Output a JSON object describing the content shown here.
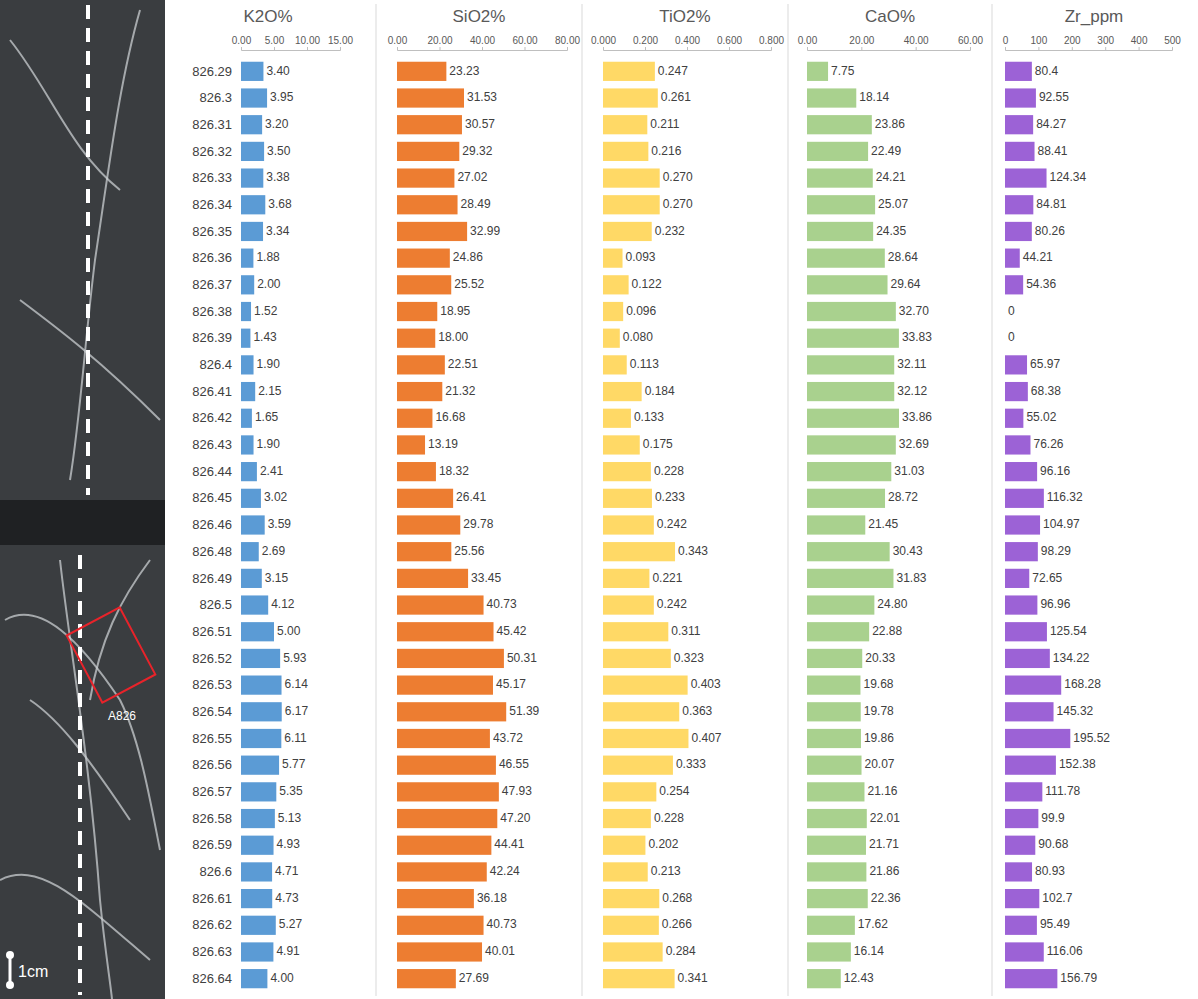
{
  "photo": {
    "label": "A826",
    "scale_bar": "1cm"
  },
  "chart_data": [
    {
      "type": "bar",
      "orientation": "horizontal",
      "title": "K2O%",
      "color": "#5b9bd5",
      "data_labels": true,
      "categories": [
        "826.29",
        "826.3",
        "826.31",
        "826.32",
        "826.33",
        "826.34",
        "826.35",
        "826.36",
        "826.37",
        "826.38",
        "826.39",
        "826.4",
        "826.41",
        "826.42",
        "826.43",
        "826.44",
        "826.45",
        "826.46",
        "826.48",
        "826.49",
        "826.5",
        "826.51",
        "826.52",
        "826.53",
        "826.54",
        "826.55",
        "826.56",
        "826.57",
        "826.58",
        "826.59",
        "826.6",
        "826.61",
        "826.62",
        "826.63",
        "826.64"
      ],
      "values": [
        3.4,
        3.95,
        3.2,
        3.5,
        3.38,
        3.68,
        3.34,
        1.88,
        2.0,
        1.52,
        1.43,
        1.9,
        2.15,
        1.65,
        1.9,
        2.41,
        3.02,
        3.59,
        2.69,
        3.15,
        4.12,
        5.0,
        5.93,
        6.14,
        6.17,
        6.11,
        5.77,
        5.35,
        5.13,
        4.93,
        4.71,
        4.73,
        5.27,
        4.91,
        4.0
      ],
      "value_labels": [
        "3.40",
        "3.95",
        "3.20",
        "3.50",
        "3.38",
        "3.68",
        "3.34",
        "1.88",
        "2.00",
        "1.52",
        "1.43",
        "1.90",
        "2.15",
        "1.65",
        "1.90",
        "2.41",
        "3.02",
        "3.59",
        "2.69",
        "3.15",
        "4.12",
        "5.00",
        "5.93",
        "6.14",
        "6.17",
        "6.11",
        "5.77",
        "5.35",
        "5.13",
        "4.93",
        "4.71",
        "4.73",
        "5.27",
        "4.91",
        "4.00"
      ],
      "xlim": [
        0,
        15
      ],
      "xticks": [
        {
          "value": 0,
          "label": "0.00"
        },
        {
          "value": 5,
          "label": "5.00"
        },
        {
          "value": 10,
          "label": "10.00"
        },
        {
          "value": 15,
          "label": "15.00"
        }
      ]
    },
    {
      "type": "bar",
      "orientation": "horizontal",
      "title": "SiO2%",
      "color": "#ed7d31",
      "data_labels": true,
      "tick_labels": "x",
      "categories": [
        "826.29",
        "826.3",
        "826.31",
        "826.32",
        "826.33",
        "826.34",
        "826.35",
        "826.36",
        "826.37",
        "826.38",
        "826.39",
        "826.4",
        "826.41",
        "826.42",
        "826.43",
        "826.44",
        "826.45",
        "826.46",
        "826.48",
        "826.49",
        "826.5",
        "826.51",
        "826.52",
        "826.53",
        "826.54",
        "826.55",
        "826.56",
        "826.57",
        "826.58",
        "826.59",
        "826.6",
        "826.61",
        "826.62",
        "826.63",
        "826.64"
      ],
      "values": [
        23.23,
        31.53,
        30.57,
        29.32,
        27.02,
        28.49,
        32.99,
        24.86,
        25.52,
        18.95,
        18.0,
        22.51,
        21.32,
        16.68,
        13.19,
        18.32,
        26.41,
        29.78,
        25.56,
        33.45,
        40.73,
        45.42,
        50.31,
        45.17,
        51.39,
        43.72,
        46.55,
        47.93,
        47.2,
        44.41,
        42.24,
        36.18,
        40.73,
        40.01,
        27.69
      ],
      "value_labels": [
        "23.23",
        "31.53",
        "30.57",
        "29.32",
        "27.02",
        "28.49",
        "32.99",
        "24.86",
        "25.52",
        "18.95",
        "18.00",
        "22.51",
        "21.32",
        "16.68",
        "13.19",
        "18.32",
        "26.41",
        "29.78",
        "25.56",
        "33.45",
        "40.73",
        "45.42",
        "50.31",
        "45.17",
        "51.39",
        "43.72",
        "46.55",
        "47.93",
        "47.20",
        "44.41",
        "42.24",
        "36.18",
        "40.73",
        "40.01",
        "27.69"
      ],
      "xlim": [
        0,
        80
      ],
      "xticks": [
        {
          "value": 0,
          "label": "0.00"
        },
        {
          "value": 20,
          "label": "20.00"
        },
        {
          "value": 40,
          "label": "40.00"
        },
        {
          "value": 60,
          "label": "60.00"
        },
        {
          "value": 80,
          "label": "80.00"
        }
      ]
    },
    {
      "type": "bar",
      "orientation": "horizontal",
      "title": "TiO2%",
      "color": "#ffd966",
      "data_labels": true,
      "tick_labels": "x",
      "categories": [
        "826.29",
        "826.3",
        "826.31",
        "826.32",
        "826.33",
        "826.34",
        "826.35",
        "826.36",
        "826.37",
        "826.38",
        "826.39",
        "826.4",
        "826.41",
        "826.42",
        "826.43",
        "826.44",
        "826.45",
        "826.46",
        "826.48",
        "826.49",
        "826.5",
        "826.51",
        "826.52",
        "826.53",
        "826.54",
        "826.55",
        "826.56",
        "826.57",
        "826.58",
        "826.59",
        "826.6",
        "826.61",
        "826.62",
        "826.63",
        "826.64"
      ],
      "values": [
        0.247,
        0.261,
        0.211,
        0.216,
        0.27,
        0.27,
        0.232,
        0.093,
        0.122,
        0.096,
        0.08,
        0.113,
        0.184,
        0.133,
        0.175,
        0.228,
        0.233,
        0.242,
        0.343,
        0.221,
        0.242,
        0.311,
        0.323,
        0.403,
        0.363,
        0.407,
        0.333,
        0.254,
        0.228,
        0.202,
        0.213,
        0.268,
        0.266,
        0.284,
        0.341
      ],
      "value_labels": [
        "0.247",
        "0.261",
        "0.211",
        "0.216",
        "0.270",
        "0.270",
        "0.232",
        "0.093",
        "0.122",
        "0.096",
        "0.080",
        "0.113",
        "0.184",
        "0.133",
        "0.175",
        "0.228",
        "0.233",
        "0.242",
        "0.343",
        "0.221",
        "0.242",
        "0.311",
        "0.323",
        "0.403",
        "0.363",
        "0.407",
        "0.333",
        "0.254",
        "0.228",
        "0.202",
        "0.213",
        "0.268",
        "0.266",
        "0.284",
        "0.341"
      ],
      "xlim": [
        0,
        0.8
      ],
      "xticks": [
        {
          "value": 0,
          "label": "0.000"
        },
        {
          "value": 0.2,
          "label": "0.200"
        },
        {
          "value": 0.4,
          "label": "0.400"
        },
        {
          "value": 0.6,
          "label": "0.600"
        },
        {
          "value": 0.8,
          "label": "0.800"
        }
      ]
    },
    {
      "type": "bar",
      "orientation": "horizontal",
      "title": "CaO%",
      "color": "#a9d18e",
      "data_labels": true,
      "tick_labels": "x",
      "categories": [
        "826.29",
        "826.3",
        "826.31",
        "826.32",
        "826.33",
        "826.34",
        "826.35",
        "826.36",
        "826.37",
        "826.38",
        "826.39",
        "826.4",
        "826.41",
        "826.42",
        "826.43",
        "826.44",
        "826.45",
        "826.46",
        "826.48",
        "826.49",
        "826.5",
        "826.51",
        "826.52",
        "826.53",
        "826.54",
        "826.55",
        "826.56",
        "826.57",
        "826.58",
        "826.59",
        "826.6",
        "826.61",
        "826.62",
        "826.63",
        "826.64"
      ],
      "values": [
        7.75,
        18.14,
        23.86,
        22.49,
        24.21,
        25.07,
        24.35,
        28.64,
        29.64,
        32.7,
        33.83,
        32.11,
        32.12,
        33.86,
        32.69,
        31.03,
        28.72,
        21.45,
        30.43,
        31.83,
        24.8,
        22.88,
        20.33,
        19.68,
        19.78,
        19.86,
        20.07,
        21.16,
        22.01,
        21.71,
        21.86,
        22.36,
        17.62,
        16.14,
        12.43
      ],
      "value_labels": [
        "7.75",
        "18.14",
        "23.86",
        "22.49",
        "24.21",
        "25.07",
        "24.35",
        "28.64",
        "29.64",
        "32.70",
        "33.83",
        "32.11",
        "32.12",
        "33.86",
        "32.69",
        "31.03",
        "28.72",
        "21.45",
        "30.43",
        "31.83",
        "24.80",
        "22.88",
        "20.33",
        "19.68",
        "19.78",
        "19.86",
        "20.07",
        "21.16",
        "22.01",
        "21.71",
        "21.86",
        "22.36",
        "17.62",
        "16.14",
        "12.43"
      ],
      "xlim": [
        0,
        60
      ],
      "xticks": [
        {
          "value": 0,
          "label": "0.00"
        },
        {
          "value": 20,
          "label": "20.00"
        },
        {
          "value": 40,
          "label": "40.00"
        },
        {
          "value": 60,
          "label": "60.00"
        }
      ]
    },
    {
      "type": "bar",
      "orientation": "horizontal",
      "title": "Zr_ppm",
      "color": "#9c62d6",
      "data_labels": true,
      "tick_labels": "x",
      "categories": [
        "826.29",
        "826.3",
        "826.31",
        "826.32",
        "826.33",
        "826.34",
        "826.35",
        "826.36",
        "826.37",
        "826.38",
        "826.39",
        "826.4",
        "826.41",
        "826.42",
        "826.43",
        "826.44",
        "826.45",
        "826.46",
        "826.48",
        "826.49",
        "826.5",
        "826.51",
        "826.52",
        "826.53",
        "826.54",
        "826.55",
        "826.56",
        "826.57",
        "826.58",
        "826.59",
        "826.6",
        "826.61",
        "826.62",
        "826.63",
        "826.64"
      ],
      "values": [
        80.4,
        92.55,
        84.27,
        88.41,
        124.34,
        84.81,
        80.26,
        44.21,
        54.36,
        0,
        0,
        65.97,
        68.38,
        55.02,
        76.26,
        96.16,
        116.32,
        104.97,
        98.29,
        72.65,
        96.96,
        125.54,
        134.22,
        168.28,
        145.32,
        195.52,
        152.38,
        111.78,
        99.9,
        90.68,
        80.93,
        102.7,
        95.49,
        116.06,
        156.79
      ],
      "xlim": [
        0,
        500
      ],
      "xticks": [
        0,
        100,
        200,
        300,
        400,
        500
      ]
    }
  ]
}
